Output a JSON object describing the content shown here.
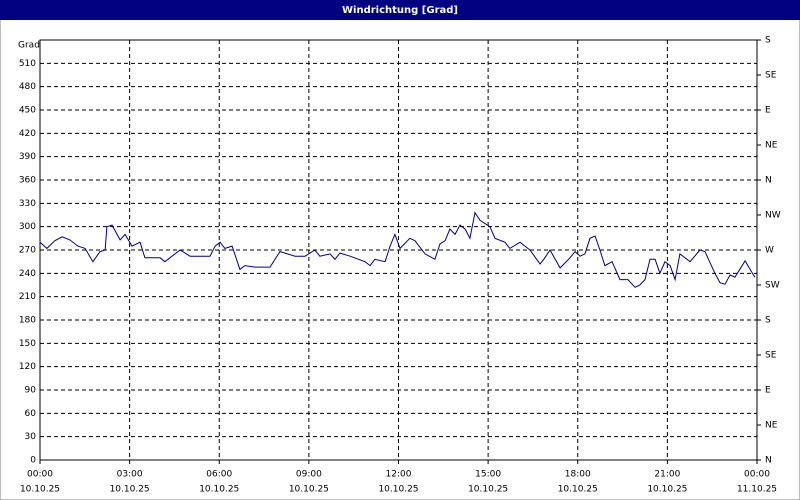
{
  "chart_data": {
    "type": "line",
    "title": "Windrichtung [Grad]",
    "ylabel": "Grad",
    "xlim": [
      0,
      24
    ],
    "xticks": [
      {
        "value": 0,
        "label": "00:00"
      },
      {
        "value": 3,
        "label": "03:00"
      },
      {
        "value": 6,
        "label": "06:00"
      },
      {
        "value": 9,
        "label": "09:00"
      },
      {
        "value": 12,
        "label": "12:00"
      },
      {
        "value": 15,
        "label": "15:00"
      },
      {
        "value": 18,
        "label": "18:00"
      },
      {
        "value": 21,
        "label": "21:00"
      },
      {
        "value": 24,
        "label": "00:00"
      }
    ],
    "xtick_dates": [
      "10.10.25",
      "10.10.25",
      "10.10.25",
      "10.10.25",
      "10.10.25",
      "10.10.25",
      "10.10.25",
      "10.10.25",
      "11.10.25"
    ],
    "ylim": [
      0,
      540
    ],
    "yticks": [
      0,
      30,
      60,
      90,
      120,
      150,
      180,
      210,
      240,
      270,
      300,
      330,
      360,
      390,
      420,
      450,
      480,
      510
    ],
    "y2lim": [
      0,
      540
    ],
    "y2ticks": [
      {
        "value": 0,
        "label": "N"
      },
      {
        "value": 45,
        "label": "NE"
      },
      {
        "value": 90,
        "label": "E"
      },
      {
        "value": 135,
        "label": "SE"
      },
      {
        "value": 180,
        "label": "S"
      },
      {
        "value": 225,
        "label": "SW"
      },
      {
        "value": 270,
        "label": "W"
      },
      {
        "value": 315,
        "label": "NW"
      },
      {
        "value": 360,
        "label": "N"
      },
      {
        "value": 405,
        "label": "NE"
      },
      {
        "value": 450,
        "label": "E"
      },
      {
        "value": 495,
        "label": "SE"
      },
      {
        "value": 540,
        "label": "S"
      }
    ],
    "grid": true,
    "x": [
      0,
      0.23,
      0.5,
      0.74,
      1.0,
      1.27,
      1.51,
      1.77,
      2.01,
      2.18,
      2.24,
      2.41,
      2.68,
      2.85,
      3.08,
      3.35,
      3.51,
      4.02,
      4.18,
      4.52,
      4.69,
      5.02,
      5.36,
      5.69,
      5.86,
      6.03,
      6.19,
      6.43,
      6.69,
      6.86,
      7.2,
      7.7,
      8.03,
      8.54,
      8.87,
      9.2,
      9.37,
      9.71,
      9.87,
      10.04,
      10.38,
      10.88,
      11.05,
      11.21,
      11.55,
      11.72,
      11.88,
      12.05,
      12.38,
      12.55,
      12.89,
      13.22,
      13.39,
      13.56,
      13.72,
      13.89,
      14.06,
      14.23,
      14.39,
      14.56,
      14.73,
      15.06,
      15.23,
      15.56,
      15.73,
      16.07,
      16.23,
      16.4,
      16.74,
      16.9,
      17.07,
      17.41,
      17.74,
      17.91,
      18.08,
      18.24,
      18.41,
      18.58,
      18.74,
      18.91,
      19.15,
      19.41,
      19.68,
      19.92,
      20.08,
      20.25,
      20.42,
      20.59,
      20.75,
      20.92,
      21.09,
      21.26,
      21.42,
      21.76,
      22.09,
      22.26,
      22.59,
      22.76,
      22.93,
      23.1,
      23.26,
      23.6,
      23.77,
      23.93
    ],
    "series": [
      {
        "color": "#000080",
        "values": [
          280,
          272,
          282,
          287,
          283,
          275,
          272,
          255,
          268,
          270,
          300,
          302,
          283,
          290,
          275,
          280,
          260,
          260,
          255,
          265,
          270,
          262,
          262,
          262,
          275,
          280,
          272,
          275,
          245,
          250,
          248,
          248,
          268,
          262,
          262,
          270,
          262,
          265,
          258,
          266,
          262,
          255,
          250,
          258,
          255,
          275,
          290,
          272,
          285,
          282,
          265,
          258,
          278,
          282,
          297,
          290,
          302,
          297,
          285,
          318,
          308,
          300,
          285,
          280,
          272,
          280,
          275,
          270,
          252,
          260,
          270,
          247,
          260,
          268,
          262,
          265,
          285,
          288,
          270,
          250,
          255,
          232,
          232,
          222,
          225,
          232,
          258,
          258,
          240,
          255,
          250,
          232,
          265,
          255,
          270,
          268,
          240,
          228,
          226,
          238,
          235,
          256,
          245,
          235
        ]
      }
    ]
  }
}
